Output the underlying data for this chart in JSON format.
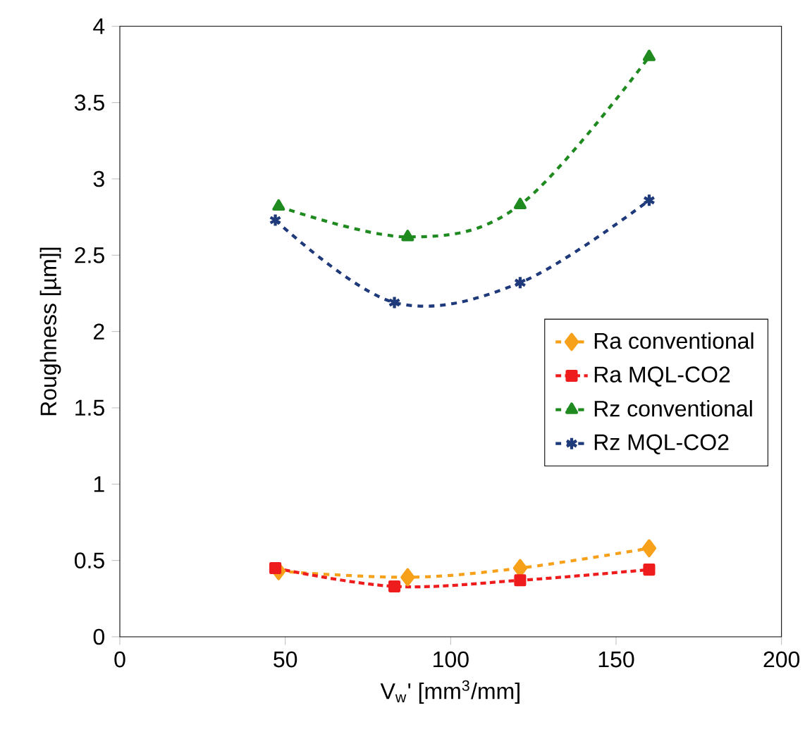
{
  "chart_data": {
    "type": "line",
    "xlabel": "V$_{w}$' [mm$^{3}$/mm]",
    "ylabel": "Roughness [µm]]",
    "xlim": [
      0,
      200
    ],
    "xticks": [
      0,
      50,
      100,
      150,
      200
    ],
    "ylim": [
      0,
      4
    ],
    "yticks": [
      0,
      0.5,
      1,
      1.5,
      2,
      2.5,
      3,
      3.5,
      4
    ],
    "grid": false,
    "legend": "right",
    "series": [
      {
        "name": "Ra conventional",
        "color": "#f7a11a",
        "marker": "diamond",
        "line_style": "dashed",
        "x": [
          48,
          87,
          121,
          160
        ],
        "values": [
          0.43,
          0.39,
          0.45,
          0.58
        ]
      },
      {
        "name": "Ra MQL-CO2",
        "color": "#ee1c1c",
        "marker": "square",
        "line_style": "dotted",
        "x": [
          47,
          83,
          121,
          160
        ],
        "values": [
          0.45,
          0.33,
          0.37,
          0.44
        ]
      },
      {
        "name": "Rz conventional",
        "color": "#1f8a1f",
        "marker": "triangle",
        "line_style": "dashed",
        "x": [
          48,
          87,
          121,
          160
        ],
        "values": [
          2.82,
          2.62,
          2.83,
          3.8
        ]
      },
      {
        "name": "Rz MQL-CO2",
        "color": "#1f3a7a",
        "marker": "cross",
        "line_style": "dashed",
        "x": [
          47,
          83,
          121,
          160
        ],
        "values": [
          2.73,
          2.19,
          2.32,
          2.86
        ]
      }
    ]
  }
}
